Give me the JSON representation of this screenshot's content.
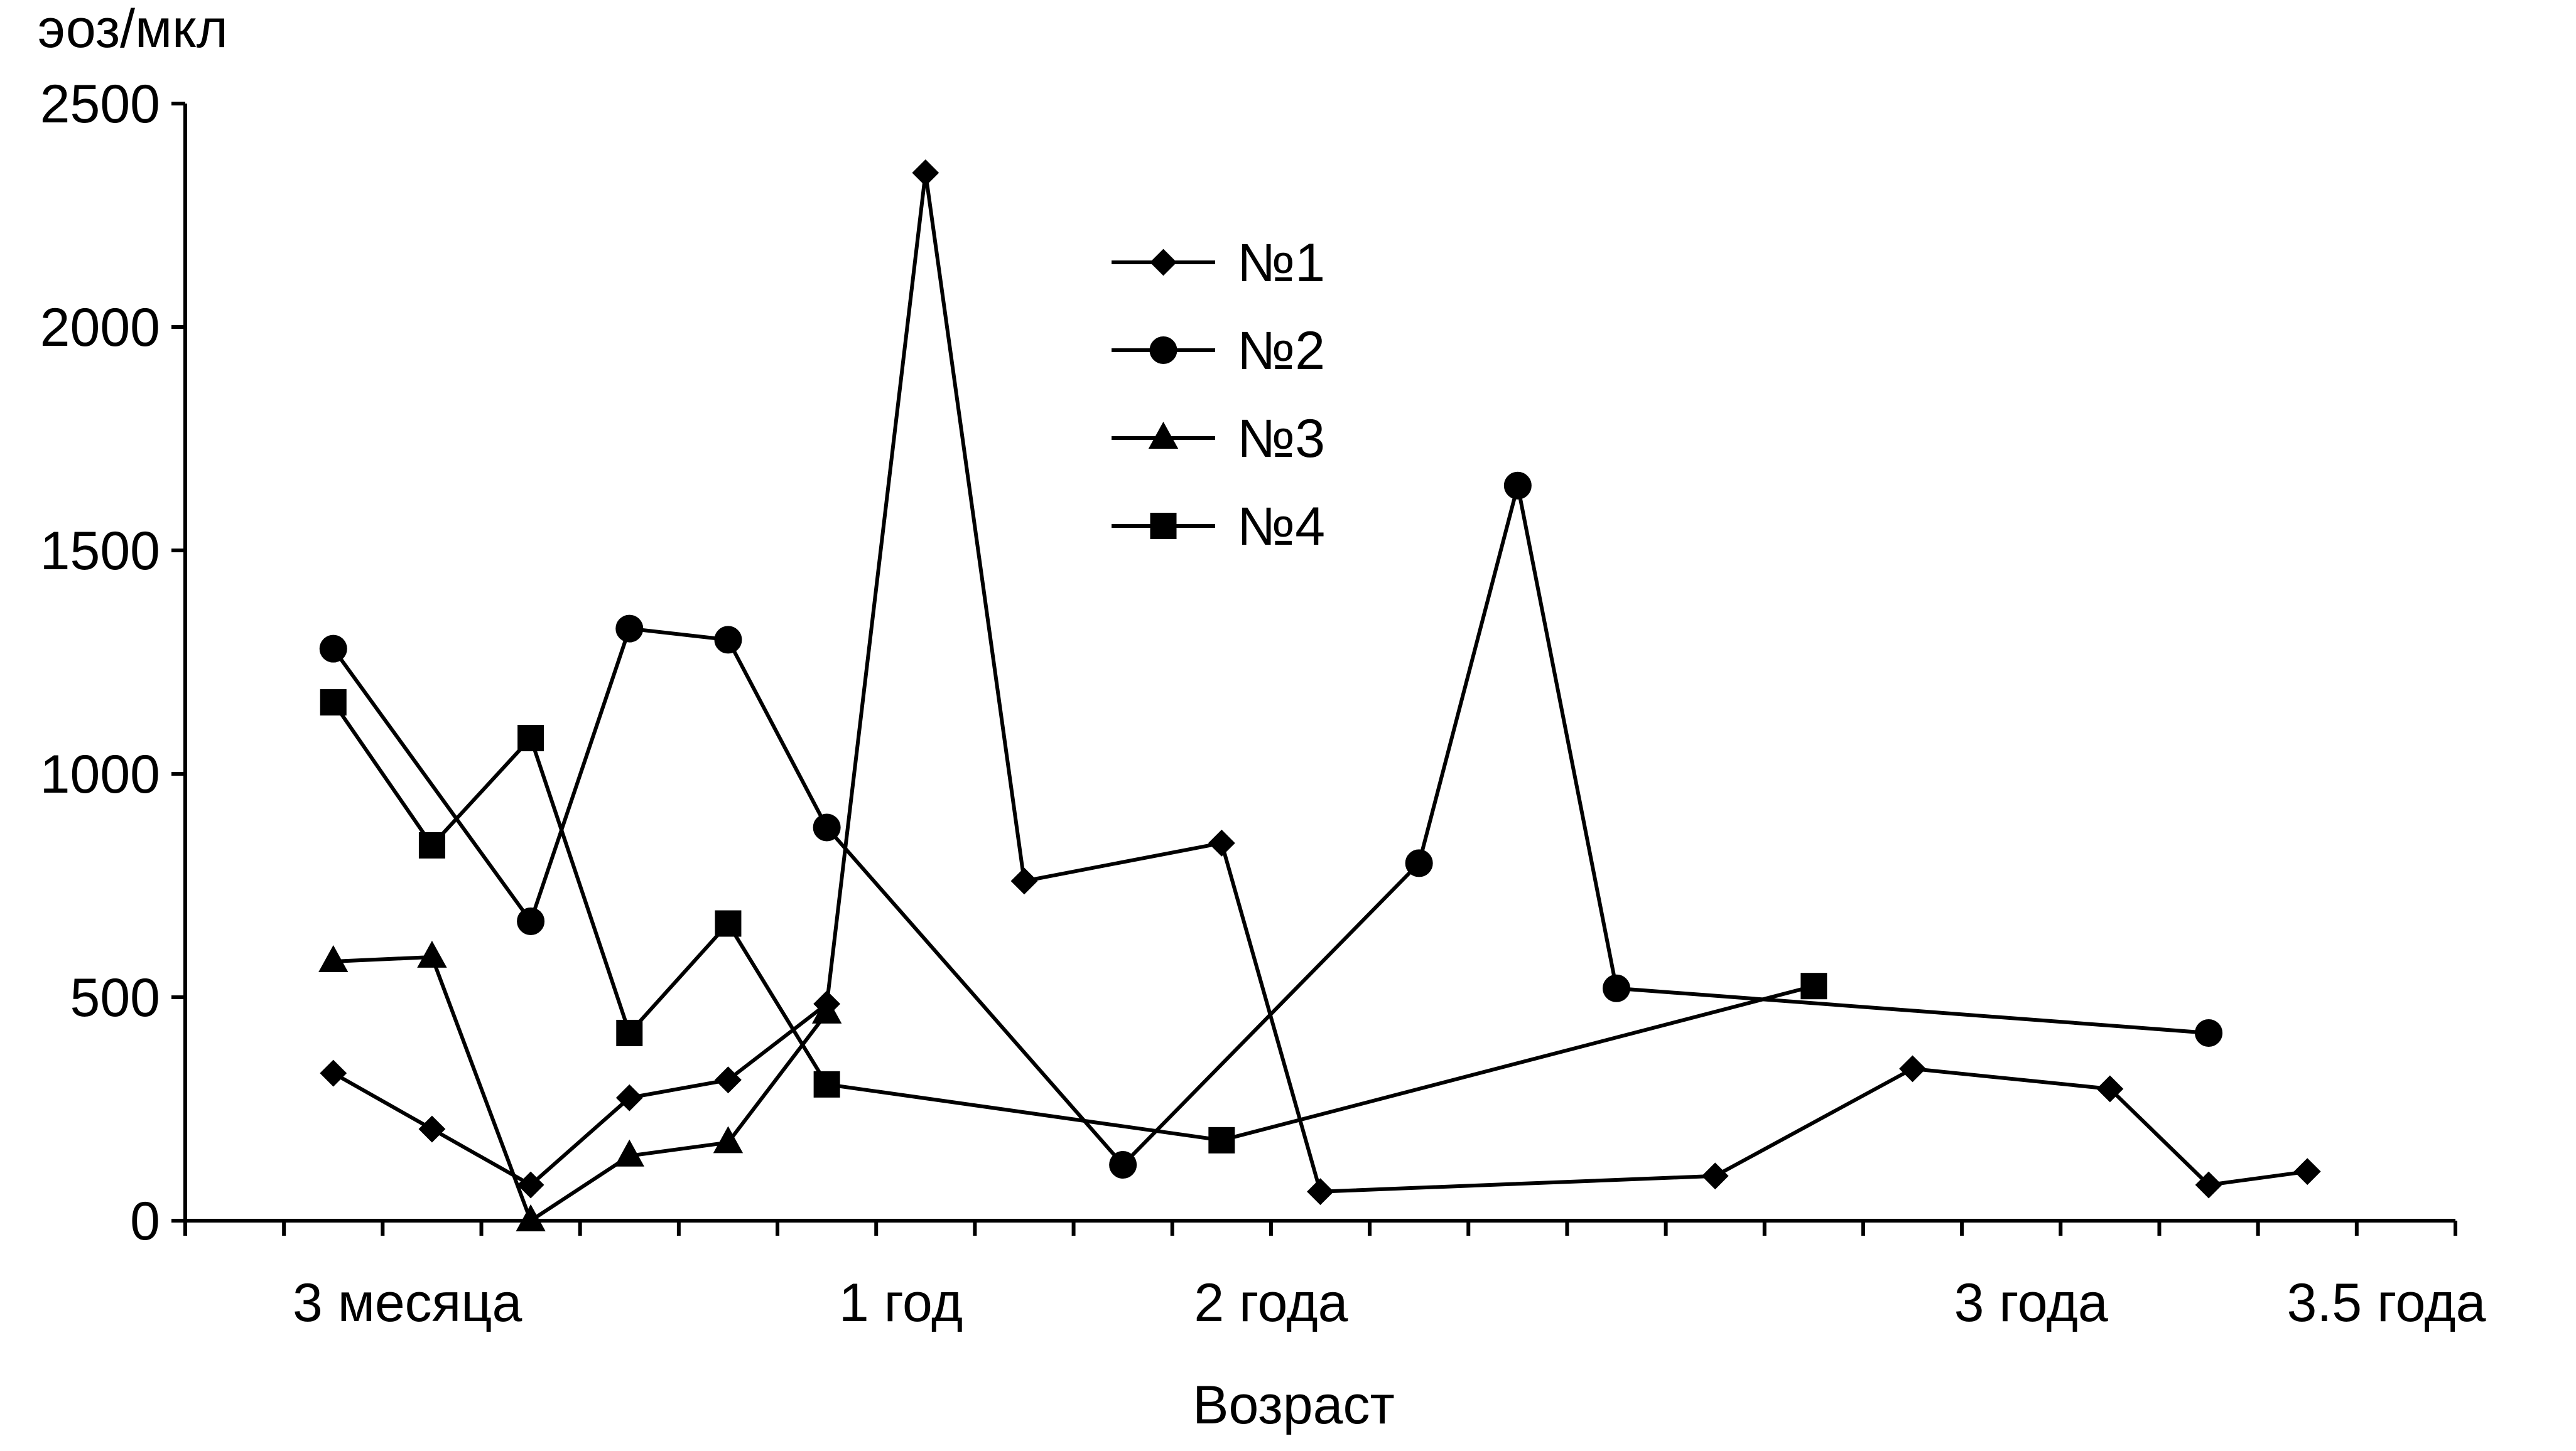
{
  "chart_data": {
    "type": "line",
    "ylabel": "эоз/мкл",
    "xlabel": "Возраст",
    "ylim": [
      0,
      2500
    ],
    "yticks": [
      0,
      500,
      1000,
      1500,
      2000,
      2500
    ],
    "xlim": [
      0,
      23
    ],
    "x_tick_labels": [
      {
        "x": 2.25,
        "label": "3 месяца"
      },
      {
        "x": 7.25,
        "label": "1 год"
      },
      {
        "x": 11,
        "label": "2 года"
      },
      {
        "x": 18.7,
        "label": "3 года"
      },
      {
        "x": 22.3,
        "label": "3.5 года"
      }
    ],
    "grid": false,
    "legend_position": "top-center",
    "series": [
      {
        "name": "№1",
        "marker": "diamond",
        "x": [
          1.5,
          2.5,
          3.5,
          4.5,
          5.5,
          6.5,
          7.5,
          8.5,
          10.5,
          11.5,
          15.5,
          17.5,
          19.5,
          20.5,
          21.5
        ],
        "y": [
          330,
          205,
          80,
          275,
          315,
          485,
          2345,
          760,
          845,
          65,
          100,
          340,
          295,
          80,
          110
        ]
      },
      {
        "name": "№2",
        "marker": "circle",
        "x": [
          1.5,
          3.5,
          4.5,
          5.5,
          6.5,
          9.5,
          12.5,
          13.5,
          14.5,
          20.5
        ],
        "y": [
          1280,
          670,
          1325,
          1300,
          880,
          125,
          800,
          1645,
          520,
          420
        ]
      },
      {
        "name": "№3",
        "marker": "triangle",
        "x": [
          1.5,
          2.5,
          3.5,
          4.5,
          5.5,
          6.5
        ],
        "y": [
          580,
          590,
          0,
          145,
          175,
          465
        ]
      },
      {
        "name": "№4",
        "marker": "square",
        "x": [
          1.5,
          2.5,
          3.5,
          4.5,
          5.5,
          6.5,
          10.5,
          16.5
        ],
        "y": [
          1160,
          840,
          1080,
          420,
          665,
          305,
          180,
          525
        ]
      }
    ]
  }
}
